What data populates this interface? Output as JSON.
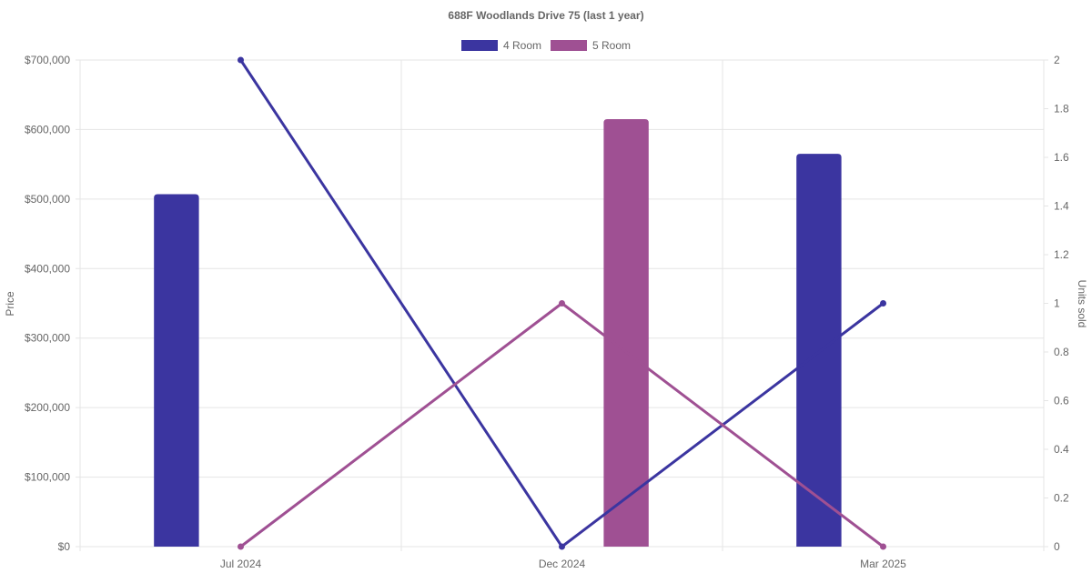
{
  "chart_data": {
    "type": "bar",
    "title": "688F Woodlands Drive 75 (last 1 year)",
    "categories": [
      "Jul 2024",
      "Dec 2024",
      "Mar 2025"
    ],
    "series": [
      {
        "name": "4 Room",
        "color": "#3b35a0",
        "prices": [
          507000,
          null,
          565000
        ],
        "units_sold": [
          2,
          0,
          1
        ]
      },
      {
        "name": "5 Room",
        "color": "#9f5093",
        "prices": [
          null,
          615000,
          null
        ],
        "units_sold": [
          0,
          1,
          0
        ]
      }
    ],
    "y_left": {
      "label": "Price",
      "range": [
        0,
        700000
      ],
      "ticks": [
        "$0",
        "$100,000",
        "$200,000",
        "$300,000",
        "$400,000",
        "$500,000",
        "$600,000",
        "$700,000"
      ]
    },
    "y_right": {
      "label": "Units sold",
      "range": [
        0,
        2
      ],
      "ticks": [
        "0",
        "0.2",
        "0.4",
        "0.6",
        "0.8",
        "1",
        "1.2",
        "1.4",
        "1.6",
        "1.8",
        "2"
      ]
    },
    "legend": "top-center",
    "grid": true
  }
}
